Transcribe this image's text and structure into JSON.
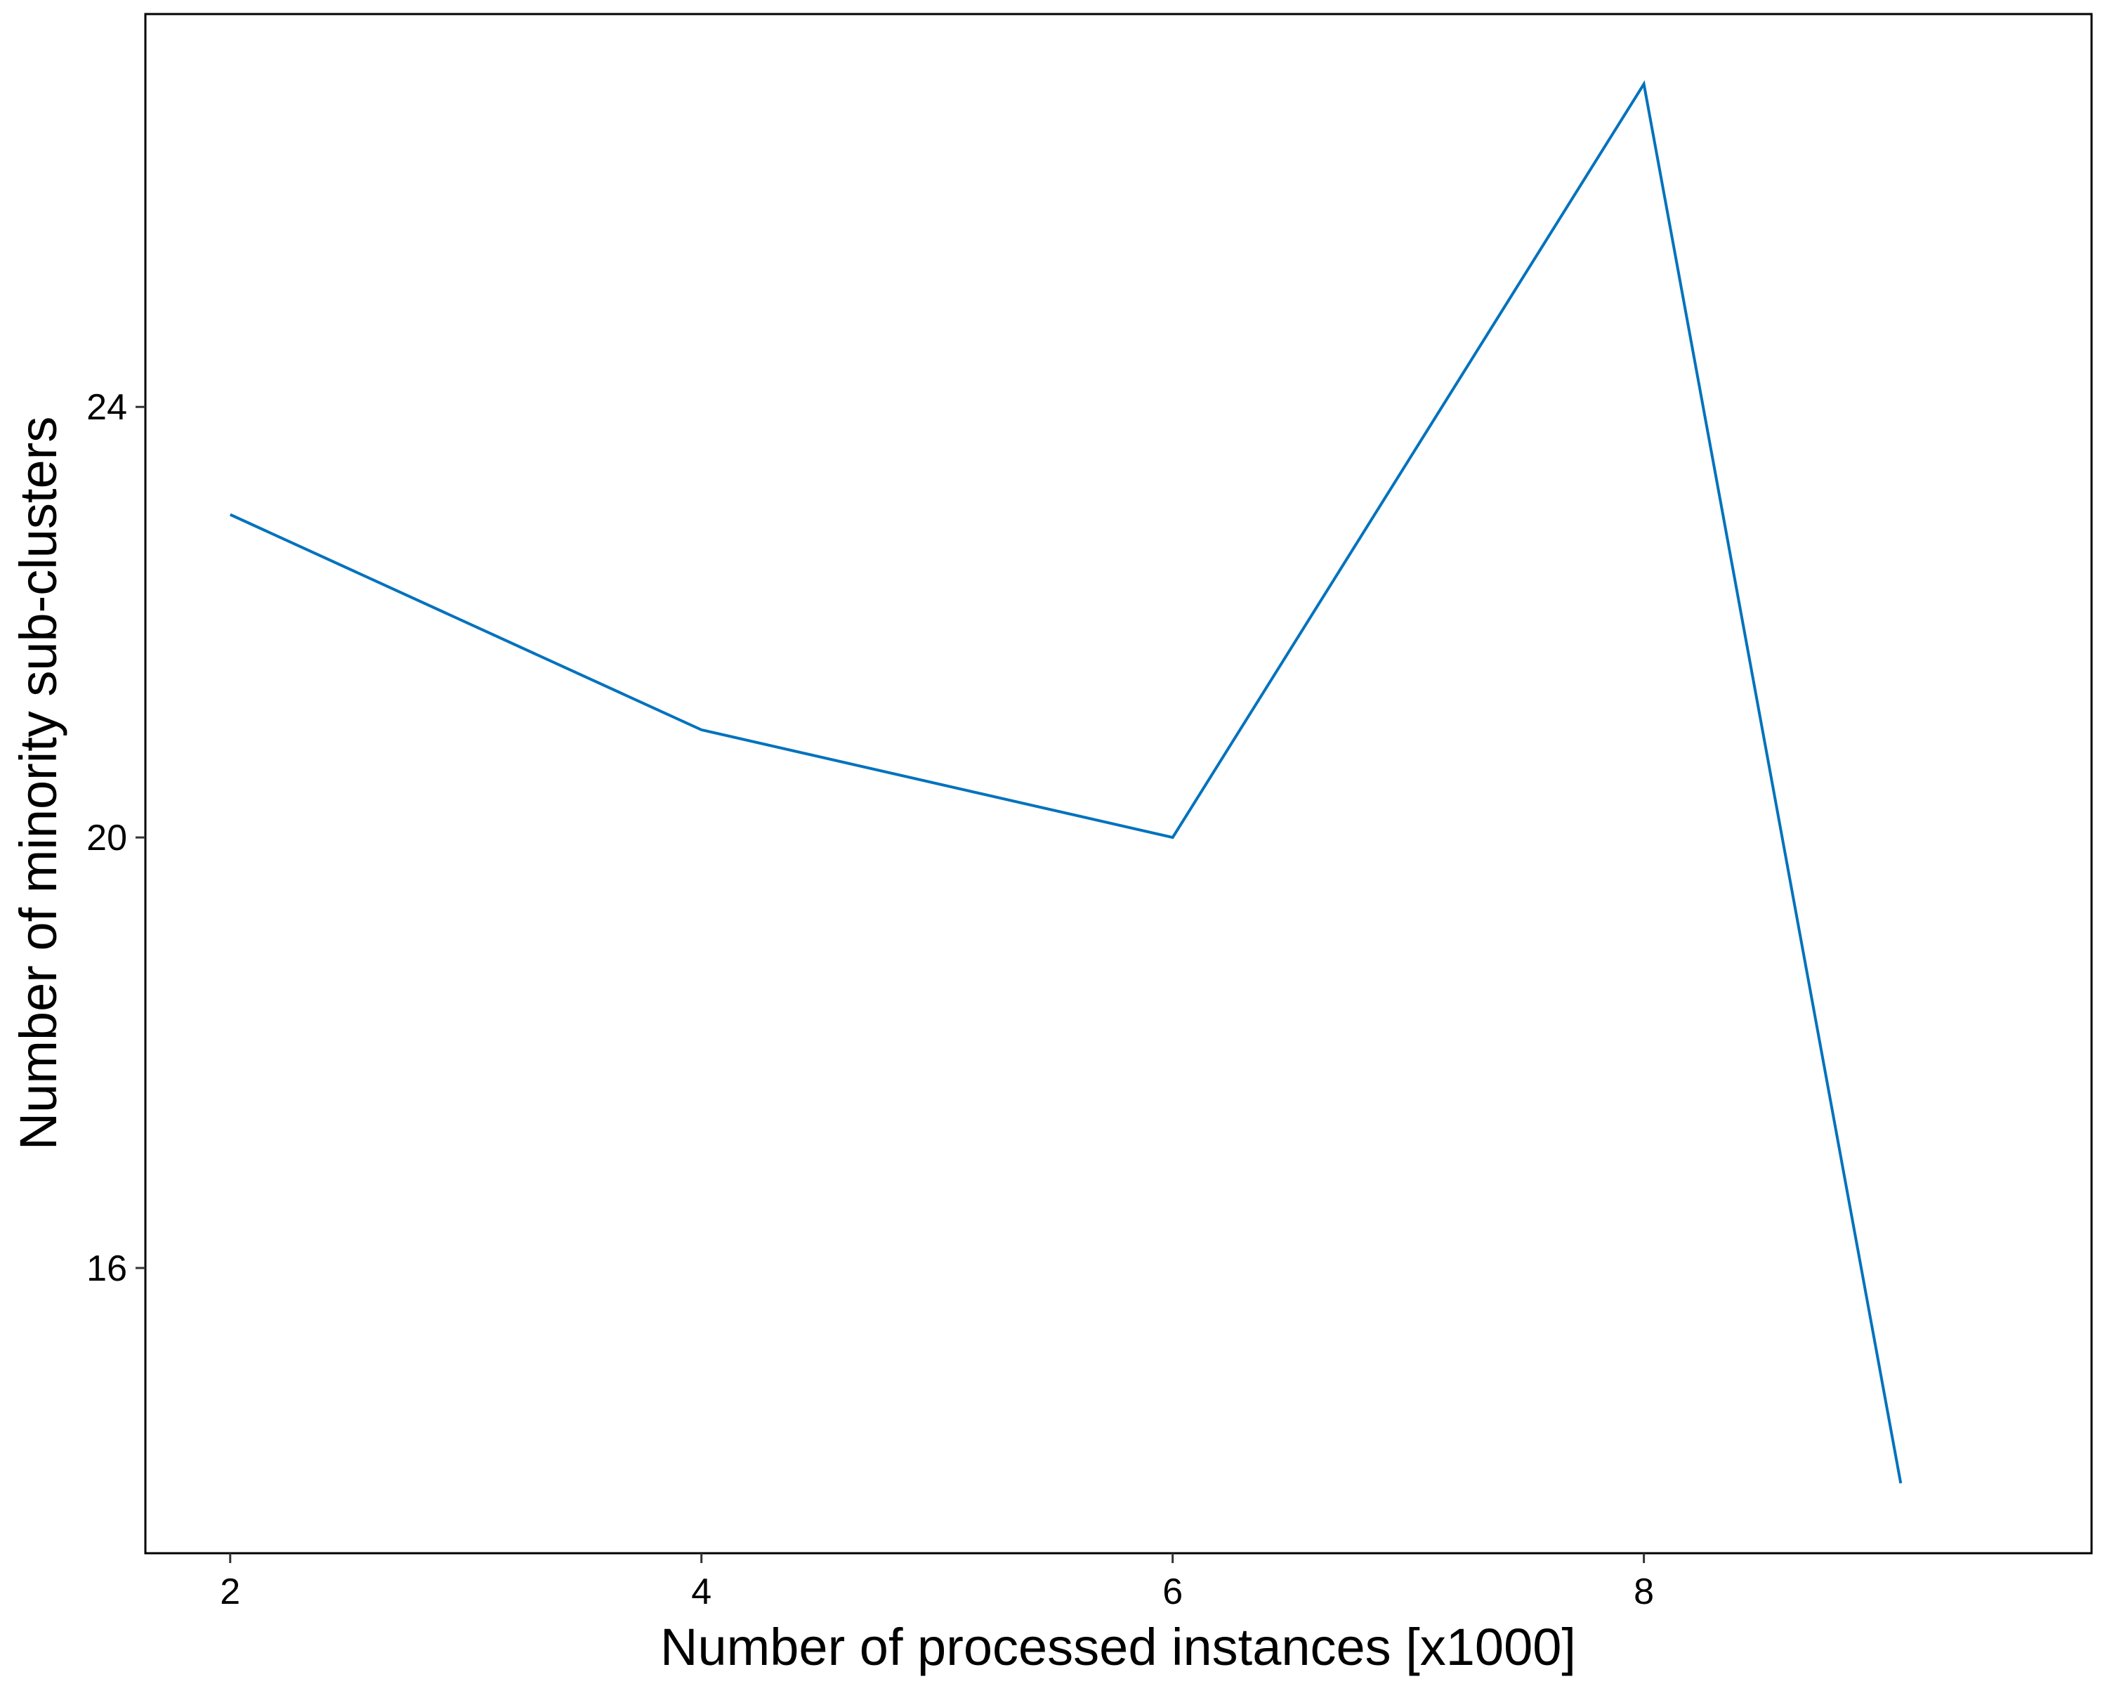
{
  "chart_data": {
    "type": "line",
    "title": "",
    "xlabel": "Number of processed instances [x1000]",
    "ylabel": "Number of minority sub-clusters",
    "x_ticks": [
      2,
      4,
      6,
      8
    ],
    "y_ticks": [
      16,
      20,
      24
    ],
    "xlim": [
      1.64,
      9.9
    ],
    "ylim": [
      13.35,
      27.65
    ],
    "grid": false,
    "legend": "none",
    "series": [
      {
        "name": "minority sub-clusters",
        "color": "#0072BD",
        "x": [
          2,
          4,
          6,
          8,
          9.09
        ],
        "y": [
          23,
          21,
          20,
          27,
          14
        ]
      }
    ]
  }
}
